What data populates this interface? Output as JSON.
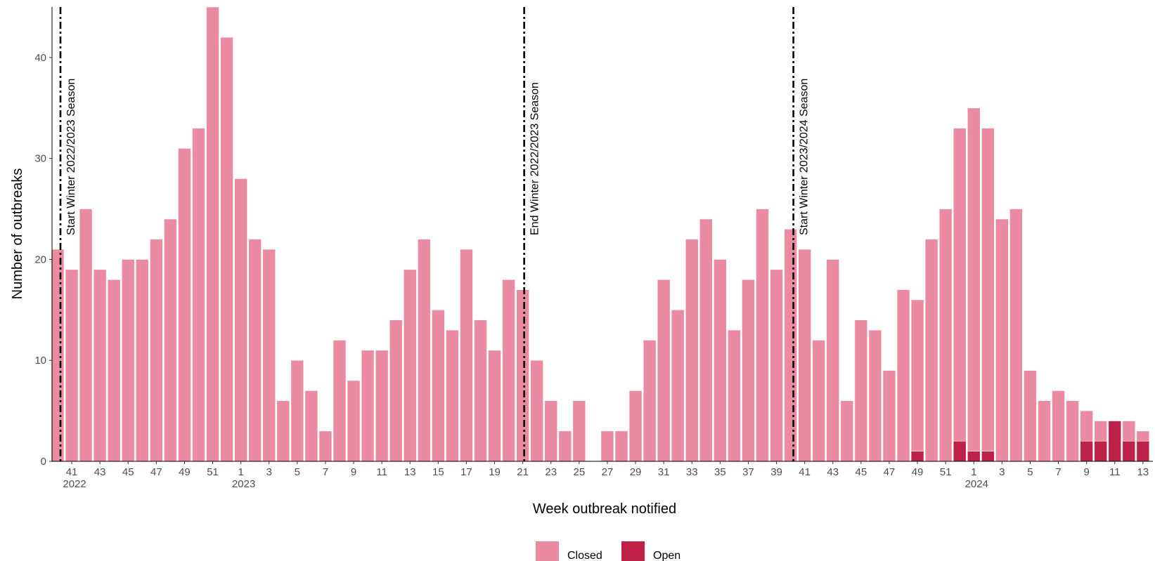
{
  "chart_data": {
    "type": "bar",
    "stacked": true,
    "xlabel": "Week outbreak notified",
    "ylabel": "Number of outbreaks",
    "ylim": [
      0,
      45
    ],
    "yticks": [
      0,
      10,
      20,
      30,
      40
    ],
    "grid": false,
    "legend_position": "bottom",
    "weeks": [
      40,
      41,
      42,
      43,
      44,
      45,
      46,
      47,
      48,
      49,
      50,
      51,
      52,
      1,
      2,
      3,
      4,
      5,
      6,
      7,
      8,
      9,
      10,
      11,
      12,
      13,
      14,
      15,
      16,
      17,
      18,
      19,
      20,
      21,
      22,
      23,
      24,
      25,
      26,
      27,
      28,
      29,
      30,
      31,
      32,
      33,
      34,
      35,
      36,
      37,
      38,
      39,
      40,
      41,
      42,
      43,
      44,
      45,
      46,
      47,
      48,
      49,
      50,
      51,
      52,
      1,
      2,
      3,
      4,
      5,
      6,
      7,
      8,
      9,
      10,
      11,
      12,
      13
    ],
    "year_labels": [
      {
        "week_index": 1,
        "label": "2022"
      },
      {
        "week_index": 13,
        "label": "2023"
      },
      {
        "week_index": 65,
        "label": "2024"
      }
    ],
    "series": [
      {
        "name": "Closed",
        "color": "#EB8BA1",
        "values": [
          21,
          19,
          25,
          19,
          18,
          20,
          20,
          22,
          24,
          31,
          33,
          45,
          42,
          28,
          22,
          21,
          6,
          10,
          7,
          3,
          12,
          8,
          11,
          11,
          14,
          19,
          22,
          15,
          13,
          21,
          14,
          11,
          18,
          17,
          10,
          6,
          3,
          6,
          0,
          3,
          3,
          7,
          12,
          18,
          15,
          22,
          24,
          20,
          13,
          18,
          25,
          19,
          23,
          21,
          12,
          20,
          6,
          14,
          13,
          9,
          17,
          15,
          22,
          25,
          31,
          34,
          32,
          24,
          25,
          9,
          6,
          7,
          6,
          3,
          2,
          0,
          2,
          1
        ]
      },
      {
        "name": "Open",
        "color": "#BE2148",
        "values": [
          0,
          0,
          0,
          0,
          0,
          0,
          0,
          0,
          0,
          0,
          0,
          0,
          0,
          0,
          0,
          0,
          0,
          0,
          0,
          0,
          0,
          0,
          0,
          0,
          0,
          0,
          0,
          0,
          0,
          0,
          0,
          0,
          0,
          0,
          0,
          0,
          0,
          0,
          0,
          0,
          0,
          0,
          0,
          0,
          0,
          0,
          0,
          0,
          0,
          0,
          0,
          0,
          0,
          0,
          0,
          0,
          0,
          0,
          0,
          0,
          0,
          1,
          0,
          0,
          2,
          1,
          1,
          0,
          0,
          0,
          0,
          0,
          0,
          2,
          2,
          4,
          2,
          2
        ]
      }
    ],
    "vertical_lines": [
      {
        "label": "Start Winter 2022/2023 Season",
        "position_index": 0.2
      },
      {
        "label": "End Winter 2022/2023 Season",
        "position_index": 33.1
      },
      {
        "label": "Start Winter 2023/2024 Season",
        "position_index": 52.2
      }
    ]
  }
}
